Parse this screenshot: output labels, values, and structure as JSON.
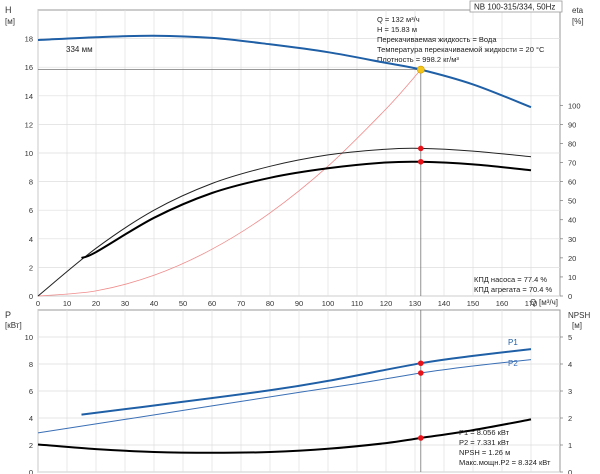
{
  "chart_data": [
    {
      "type": "line",
      "panel": "head-efficiency",
      "model_label": "NB 100-315/334, 50Hz",
      "left_axis": {
        "title": "H",
        "unit": "[м]",
        "ylim": [
          0,
          20
        ],
        "ticks": [
          0,
          2,
          4,
          6,
          8,
          10,
          12,
          14,
          16,
          18
        ]
      },
      "right_axis": {
        "title": "eta",
        "unit": "[%]",
        "ylim": [
          0,
          150
        ],
        "ticks": [
          0,
          10,
          20,
          30,
          40,
          50,
          60,
          70,
          80,
          90,
          100
        ]
      },
      "x_axis": {
        "label": "Q",
        "unit": "[м³/ч]",
        "xlim": [
          0,
          180
        ],
        "ticks": [
          0,
          10,
          20,
          30,
          40,
          50,
          60,
          70,
          80,
          90,
          100,
          110,
          120,
          130,
          140,
          150,
          160,
          170
        ]
      },
      "info_lines": [
        "Q = 132 м³/ч",
        "H = 15.83 м",
        "Перекачиваемая жидкость = Вода",
        "Температура перекачиваемой жидкости = 20 °C",
        "Плотность = 998.2 кг/м³"
      ],
      "efficiency_lines": [
        "КПД насоса = 77.4 %",
        "КПД агрегата = 70.4 %"
      ],
      "duty_point": {
        "x": 132,
        "y": 15.83
      },
      "series": [
        {
          "name": "334 мм",
          "axis": "left",
          "color": "#1f5fa6",
          "width": 2,
          "x": [
            0,
            20,
            40,
            60,
            80,
            100,
            120,
            132,
            150,
            170
          ],
          "y": [
            17.9,
            18.1,
            18.2,
            18.05,
            17.6,
            17.05,
            16.3,
            15.83,
            14.8,
            13.2
          ]
        },
        {
          "name": "",
          "axis": "left",
          "color": "#f08a8a",
          "width": 0.8,
          "x": [
            0,
            20,
            40,
            60,
            80,
            100,
            120,
            132
          ],
          "y": [
            0,
            0.36,
            1.45,
            3.27,
            5.81,
            9.08,
            13.08,
            15.83
          ]
        },
        {
          "name": "",
          "axis": "right",
          "color": "#222222",
          "width": 1,
          "x": [
            0,
            20,
            40,
            60,
            80,
            100,
            120,
            132,
            150,
            170
          ],
          "y": [
            0,
            25,
            45,
            59,
            68,
            74,
            77,
            77.4,
            76,
            73
          ]
        },
        {
          "name": "",
          "axis": "right",
          "color": "#000000",
          "width": 2,
          "x": [
            15,
            20,
            40,
            60,
            80,
            100,
            120,
            132,
            150,
            170
          ],
          "y": [
            20,
            23,
            41,
            54,
            62,
            67,
            70,
            70.4,
            69,
            66
          ]
        }
      ],
      "markers": [
        {
          "axis": "left",
          "x": 132,
          "y": 15.83,
          "color": "#f5c518"
        },
        {
          "axis": "right",
          "x": 132,
          "y": 77.4,
          "color": "#e8141c"
        },
        {
          "axis": "right",
          "x": 132,
          "y": 70.4,
          "color": "#e8141c"
        }
      ]
    },
    {
      "type": "line",
      "panel": "power-npsh",
      "left_axis": {
        "title": "P",
        "unit": "[кВт]",
        "ylim": [
          0,
          12
        ],
        "ticks": [
          0,
          2,
          4,
          6,
          8,
          10
        ]
      },
      "right_axis": {
        "title": "NPSH",
        "unit": "[м]",
        "ylim": [
          0,
          6
        ],
        "ticks": [
          0,
          1,
          2,
          3,
          4,
          5
        ]
      },
      "x_axis": {
        "xlim": [
          0,
          180
        ]
      },
      "info_lines": [
        "P1 = 8.056 кВт",
        "P2 = 7.331 кВт",
        "NPSH = 1.26 м",
        "Макс.мощн.P2 = 8.324 кВт"
      ],
      "series": [
        {
          "name": "P1",
          "axis": "left",
          "color": "#1f5fa6",
          "width": 2,
          "x": [
            15,
            50,
            80,
            100,
            132,
            150,
            170
          ],
          "y": [
            4.25,
            5.2,
            6.05,
            6.75,
            8.056,
            8.6,
            9.1
          ]
        },
        {
          "name": "P2",
          "axis": "left",
          "color": "#3a6fb5",
          "width": 1,
          "x": [
            0,
            30,
            60,
            90,
            110,
            132,
            150,
            170
          ],
          "y": [
            2.9,
            3.9,
            4.9,
            5.9,
            6.55,
            7.331,
            7.85,
            8.324
          ]
        },
        {
          "name": "",
          "axis": "right",
          "color": "#000000",
          "width": 2,
          "x": [
            0,
            20,
            40,
            60,
            80,
            100,
            120,
            132,
            150,
            170
          ],
          "y": [
            1.02,
            0.85,
            0.74,
            0.71,
            0.74,
            0.86,
            1.07,
            1.26,
            1.55,
            1.95
          ]
        }
      ],
      "markers": [
        {
          "axis": "left",
          "x": 132,
          "y": 8.056,
          "color": "#e8141c"
        },
        {
          "axis": "left",
          "x": 132,
          "y": 7.331,
          "color": "#e8141c"
        },
        {
          "axis": "right",
          "x": 132,
          "y": 1.26,
          "color": "#e8141c"
        }
      ]
    }
  ]
}
